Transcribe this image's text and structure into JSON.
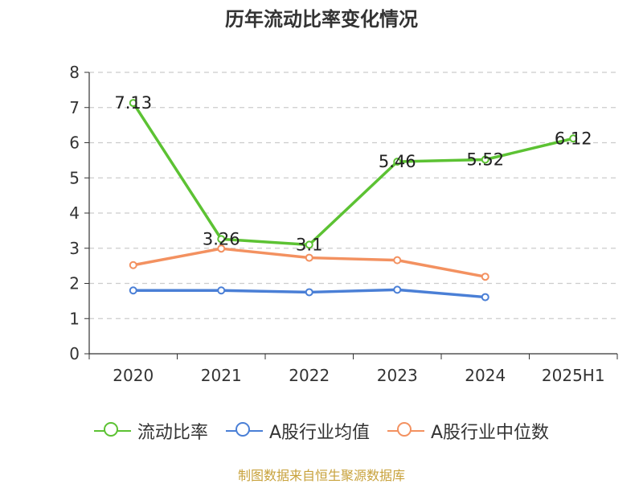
{
  "chart_data": {
    "type": "line",
    "title": "历年流动比率变化情况",
    "categories": [
      "2020",
      "2021",
      "2022",
      "2023",
      "2024",
      "2025H1"
    ],
    "ylim": [
      0,
      8
    ],
    "yticks": [
      0,
      1,
      2,
      3,
      4,
      5,
      6,
      7,
      8
    ],
    "grid": "horizontal dashed",
    "legend_position": "bottom",
    "series": [
      {
        "name": "流动比率",
        "color": "#5cc233",
        "values": [
          7.13,
          3.26,
          3.1,
          5.46,
          5.52,
          6.12
        ],
        "labels": [
          "7.13",
          "3.26",
          "3.1",
          "5.46",
          "5.52",
          "6.12"
        ]
      },
      {
        "name": "A股行业均值",
        "color": "#4a7fd6",
        "values": [
          1.8,
          1.8,
          1.75,
          1.82,
          1.61,
          null
        ]
      },
      {
        "name": "A股行业中位数",
        "color": "#f39160",
        "values": [
          2.52,
          2.99,
          2.73,
          2.66,
          2.19,
          null
        ]
      }
    ]
  },
  "source_note": "制图数据来自恒生聚源数据库"
}
